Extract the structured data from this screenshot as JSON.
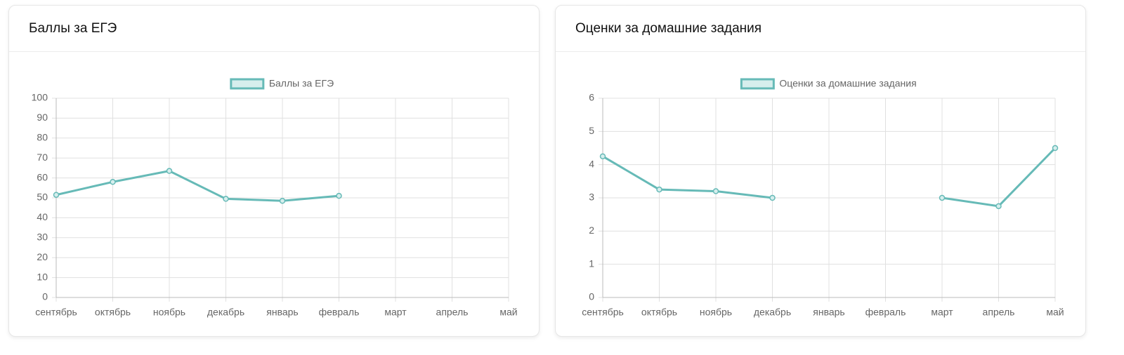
{
  "chart_data": [
    {
      "type": "line",
      "title": "Баллы за ЕГЭ",
      "categories": [
        "сентябрь",
        "октябрь",
        "ноябрь",
        "декабрь",
        "январь",
        "февраль",
        "март",
        "апрель",
        "май"
      ],
      "series": [
        {
          "name": "Баллы за ЕГЭ",
          "color": "#66bab7",
          "values": [
            51.5,
            58,
            63.5,
            49.5,
            48.5,
            51,
            null,
            null,
            null
          ]
        }
      ],
      "ylim": [
        0,
        100
      ],
      "yticks": [
        0,
        10,
        20,
        30,
        40,
        50,
        60,
        70,
        80,
        90,
        100
      ],
      "grid": true
    },
    {
      "type": "line",
      "title": "Оценки за домашние задания",
      "categories": [
        "сентябрь",
        "октябрь",
        "ноябрь",
        "декабрь",
        "январь",
        "февраль",
        "март",
        "апрель",
        "май"
      ],
      "series": [
        {
          "name": "Оценки за домашние задания",
          "color": "#66bab7",
          "values": [
            4.25,
            3.25,
            3.2,
            3,
            null,
            null,
            3,
            2.75,
            4.5
          ]
        }
      ],
      "ylim": [
        0,
        6
      ],
      "yticks": [
        0,
        1,
        2,
        3,
        4,
        5,
        6
      ],
      "grid": true
    }
  ]
}
